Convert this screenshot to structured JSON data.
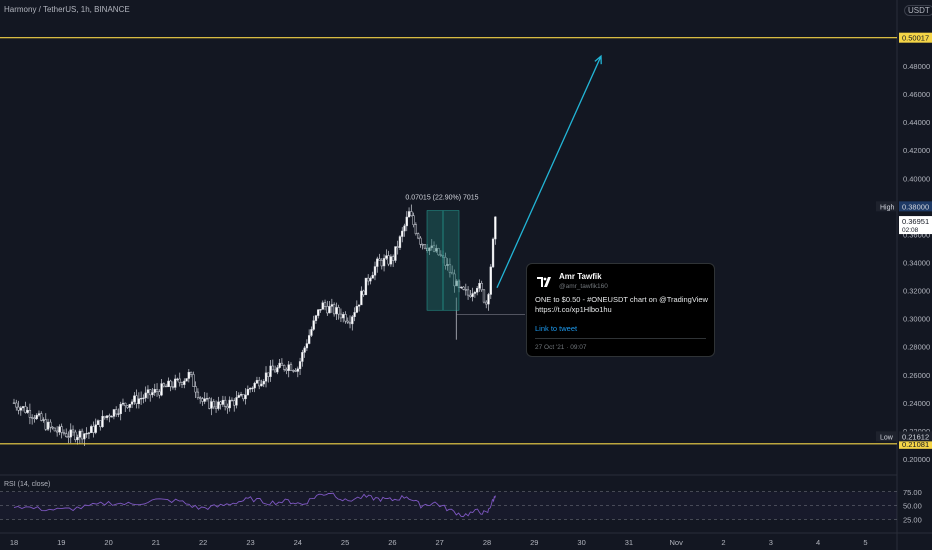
{
  "header": {
    "title": "Harmony / TetherUS, 1h, BINANCE",
    "currency": "USDT"
  },
  "rsi": {
    "label": "RSI (14, close)",
    "ticks": [
      "75.00",
      "50.00",
      "25.00"
    ],
    "color": "#7e57c2"
  },
  "tweet": {
    "name": "Amr Tawfik",
    "handle": "@amr_tawfik160",
    "text": "ONE to $0.50 - #ONEUSDT chart on @TradingView https://t.co/xp1Hlbo1hu",
    "link": "Link to tweet",
    "date": "27 Oct '21 · 09:07"
  },
  "colors": {
    "background": "#131722",
    "up": "#ffffff",
    "down": "#ffffff",
    "level_line": "#f5d547",
    "arrow": "#22b5d6",
    "measure_box": "#1f6f6a",
    "high_label_bg": "#1e3a66"
  },
  "chart_data": {
    "type": "candlestick",
    "title": "Harmony / TetherUS, 1h, BINANCE",
    "ylim": [
      0.19,
      0.515
    ],
    "y_ticks": [
      "0.48000",
      "0.46000",
      "0.44000",
      "0.42000",
      "0.40000",
      "0.38000",
      "0.36000",
      "0.34000",
      "0.32000",
      "0.30000",
      "0.28000",
      "0.26000",
      "0.24000",
      "0.22000",
      "0.20000"
    ],
    "x_ticks": [
      "18",
      "19",
      "20",
      "21",
      "22",
      "23",
      "24",
      "25",
      "26",
      "27",
      "28",
      "29",
      "30",
      "31",
      "Nov",
      "2",
      "3",
      "4",
      "5"
    ],
    "levels": [
      {
        "label": "0.50017",
        "value": 0.50017
      },
      {
        "label": "0.21081",
        "value": 0.21081
      }
    ],
    "markers": [
      {
        "label": "High",
        "value_label": "0.38000",
        "value": 0.38
      },
      {
        "label": "Low",
        "value_label": "0.21612",
        "value": 0.21612
      }
    ],
    "last_price": {
      "value_label": "0.36951",
      "countdown": "02:08",
      "value": 0.36951
    },
    "measure": {
      "label": "0.07015 (22.90%) 7015",
      "from": 0.306,
      "to": 0.377
    },
    "projection": {
      "from_value": 0.322,
      "to_value": 0.487
    },
    "price_path": [
      [
        18.0,
        0.24
      ],
      [
        18.4,
        0.232
      ],
      [
        18.8,
        0.221
      ],
      [
        19.2,
        0.217
      ],
      [
        19.6,
        0.219
      ],
      [
        20.0,
        0.232
      ],
      [
        20.4,
        0.24
      ],
      [
        20.8,
        0.245
      ],
      [
        21.2,
        0.251
      ],
      [
        21.5,
        0.255
      ],
      [
        21.7,
        0.26
      ],
      [
        22.0,
        0.24
      ],
      [
        22.4,
        0.238
      ],
      [
        22.8,
        0.243
      ],
      [
        23.0,
        0.251
      ],
      [
        23.4,
        0.262
      ],
      [
        23.8,
        0.267
      ],
      [
        24.0,
        0.265
      ],
      [
        24.2,
        0.285
      ],
      [
        24.5,
        0.31
      ],
      [
        24.8,
        0.305
      ],
      [
        25.1,
        0.3
      ],
      [
        25.3,
        0.313
      ],
      [
        25.5,
        0.33
      ],
      [
        25.7,
        0.34
      ],
      [
        26.0,
        0.342
      ],
      [
        26.2,
        0.36
      ],
      [
        26.35,
        0.375
      ],
      [
        26.6,
        0.355
      ],
      [
        26.8,
        0.35
      ],
      [
        27.0,
        0.345
      ],
      [
        27.2,
        0.335
      ],
      [
        27.4,
        0.32
      ],
      [
        27.6,
        0.317
      ],
      [
        27.8,
        0.325
      ],
      [
        28.0,
        0.31
      ],
      [
        28.1,
        0.345
      ],
      [
        28.18,
        0.37
      ]
    ],
    "rsi_path": [
      [
        18.0,
        50
      ],
      [
        18.5,
        44
      ],
      [
        19.0,
        42
      ],
      [
        19.5,
        47
      ],
      [
        20.0,
        55
      ],
      [
        20.5,
        52
      ],
      [
        21.0,
        60
      ],
      [
        21.5,
        58
      ],
      [
        21.9,
        45
      ],
      [
        22.3,
        48
      ],
      [
        22.7,
        56
      ],
      [
        23.0,
        62
      ],
      [
        23.4,
        55
      ],
      [
        23.8,
        58
      ],
      [
        24.1,
        52
      ],
      [
        24.4,
        68
      ],
      [
        24.7,
        74
      ],
      [
        25.0,
        58
      ],
      [
        25.4,
        66
      ],
      [
        25.7,
        62
      ],
      [
        26.0,
        60
      ],
      [
        26.3,
        67
      ],
      [
        26.6,
        50
      ],
      [
        26.9,
        55
      ],
      [
        27.2,
        42
      ],
      [
        27.5,
        32
      ],
      [
        27.8,
        40
      ],
      [
        28.0,
        35
      ],
      [
        28.1,
        55
      ],
      [
        28.18,
        68
      ]
    ]
  }
}
